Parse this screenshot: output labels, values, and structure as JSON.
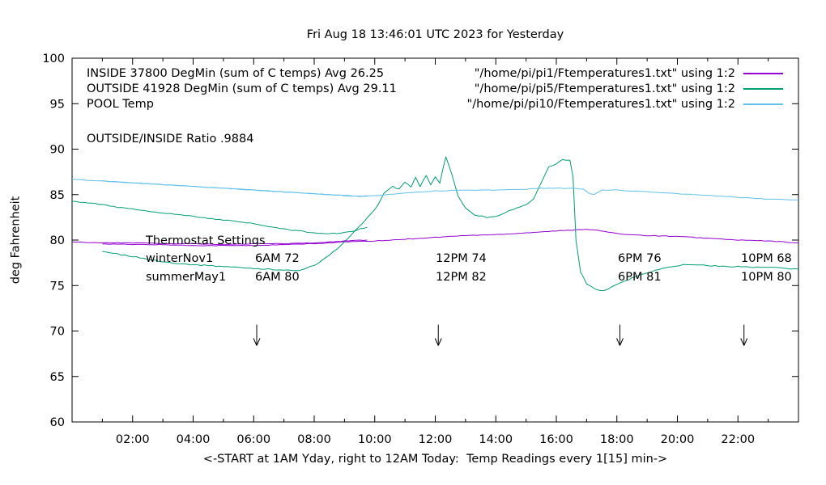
{
  "chart_data": {
    "type": "line",
    "title": "Fri Aug 18 13:46:01 UTC 2023 for Yesterday",
    "xlabel": "<-START at 1AM Yday, right to 12AM Today:  Temp Readings every 1[15] min->",
    "ylabel": "deg Fahrenheit",
    "xlim": [
      0,
      24
    ],
    "ylim": [
      60,
      100
    ],
    "grid": false,
    "legend_position": "top-inside",
    "x_major_ticks": {
      "values": [
        2,
        4,
        6,
        8,
        10,
        12,
        14,
        16,
        18,
        20,
        22
      ],
      "labels": [
        "02:00",
        "04:00",
        "06:00",
        "08:00",
        "10:00",
        "12:00",
        "14:00",
        "16:00",
        "18:00",
        "20:00",
        "22:00"
      ]
    },
    "x_minor_tick_step": 1,
    "y_ticks": [
      60,
      65,
      70,
      75,
      80,
      85,
      90,
      95,
      100
    ],
    "ratio_note": "OUTSIDE/INSIDE Ratio .9884",
    "series": [
      {
        "name": "INSIDE",
        "legend_label": "INSIDE 37800 DegMin (sum of C temps) Avg 26.25",
        "source": "\"/home/pi/pi1/Ftemperatures1.txt\" using 1:2",
        "color": "#9400d3",
        "in_legend": true,
        "x": [
          1,
          2,
          3,
          4,
          5,
          6,
          7,
          8,
          9,
          10,
          11,
          12,
          13,
          14,
          15,
          16,
          16.5,
          17,
          17.5,
          18,
          19,
          20,
          21,
          22,
          23,
          24
        ],
        "values": [
          79.6,
          79.5,
          79.5,
          79.4,
          79.4,
          79.4,
          79.5,
          79.6,
          79.8,
          79.9,
          80.1,
          80.3,
          80.5,
          80.6,
          80.8,
          81.0,
          81.1,
          81.2,
          81.0,
          80.7,
          80.5,
          80.4,
          80.2,
          80.0,
          79.9,
          79.7
        ]
      },
      {
        "name": "OUTSIDE",
        "legend_label": "OUTSIDE 41928 DegMin (sum of C temps) Avg 29.11",
        "source": "\"/home/pi/pi5/Ftemperatures1.txt\" using 1:2",
        "color": "#009e73",
        "in_legend": true,
        "x": [
          1,
          2,
          3,
          4,
          5,
          6,
          6.5,
          7,
          7.5,
          8,
          8.5,
          9,
          9.5,
          10,
          10.3,
          10.6,
          10.8,
          11,
          11.2,
          11.35,
          11.5,
          11.7,
          11.85,
          12,
          12.15,
          12.35,
          12.55,
          12.75,
          13,
          13.3,
          13.7,
          14,
          14.3,
          14.7,
          15,
          15.25,
          15.5,
          15.75,
          16,
          16.2,
          16.45,
          16.55,
          16.65,
          16.8,
          17,
          17.2,
          17.45,
          17.7,
          17.9,
          18.1,
          18.4,
          18.7,
          19,
          19.4,
          19.8,
          20.2,
          20.6,
          21,
          21.5,
          22,
          22.5,
          23,
          23.5,
          24
        ],
        "values": [
          78.7,
          78.2,
          77.6,
          77.3,
          77.1,
          76.9,
          76.8,
          76.7,
          76.6,
          77.2,
          78.3,
          79.8,
          81.5,
          83.3,
          85.1,
          85.9,
          85.6,
          86.4,
          85.8,
          86.9,
          85.9,
          87.1,
          86.1,
          86.9,
          86.3,
          89.2,
          87.2,
          84.9,
          83.5,
          82.8,
          82.5,
          82.6,
          83.0,
          83.6,
          83.9,
          84.5,
          86.3,
          88.0,
          88.4,
          88.8,
          88.8,
          87.0,
          80.0,
          76.5,
          75.2,
          74.8,
          74.4,
          74.6,
          75.0,
          75.3,
          75.7,
          76.1,
          76.4,
          76.8,
          77.1,
          77.3,
          77.3,
          77.2,
          77.1,
          77.1,
          77.0,
          77.0,
          76.9,
          76.8
        ]
      },
      {
        "name": "POOL",
        "legend_label": "POOL Temp",
        "source": "\"/home/pi/pi10/Ftemperatures1.txt\" using 1:2",
        "color": "#5fc0ea",
        "in_legend": true,
        "x": [
          1,
          2,
          3,
          4,
          5,
          6,
          7,
          8,
          9,
          9.5,
          10,
          10.5,
          11,
          11.5,
          12,
          13,
          14,
          15,
          15.5,
          16,
          16.5,
          16.9,
          17.1,
          17.25,
          17.5,
          18,
          18.5,
          19,
          19.5,
          20,
          21,
          22,
          23,
          24
        ],
        "values": [
          86.5,
          86.3,
          86.1,
          85.9,
          85.7,
          85.5,
          85.3,
          85.1,
          84.9,
          84.8,
          84.9,
          85.0,
          85.2,
          85.3,
          85.4,
          85.5,
          85.5,
          85.6,
          85.7,
          85.7,
          85.7,
          85.6,
          85.1,
          85.0,
          85.5,
          85.5,
          85.4,
          85.3,
          85.2,
          85.1,
          84.9,
          84.7,
          84.5,
          84.4
        ]
      },
      {
        "name": "INSIDE-today-partial",
        "color": "#9400d3",
        "in_legend": false,
        "x": [
          0,
          1,
          2,
          3,
          4,
          5,
          6,
          7,
          8,
          9,
          9.75
        ],
        "values": [
          79.8,
          79.7,
          79.7,
          79.6,
          79.6,
          79.5,
          79.6,
          79.6,
          79.7,
          79.9,
          80.0
        ]
      },
      {
        "name": "OUTSIDE-today-partial",
        "color": "#009e73",
        "in_legend": false,
        "x": [
          0,
          0.5,
          1,
          1.5,
          2,
          2.5,
          3,
          3.5,
          4,
          4.5,
          5,
          5.5,
          6,
          6.5,
          7,
          7.5,
          8,
          8.5,
          9,
          9.4,
          9.75
        ],
        "values": [
          84.3,
          84.1,
          83.9,
          83.6,
          83.4,
          83.2,
          83.0,
          82.8,
          82.6,
          82.4,
          82.2,
          82.0,
          81.8,
          81.5,
          81.2,
          81.0,
          80.8,
          80.7,
          80.8,
          81.1,
          81.4
        ]
      },
      {
        "name": "POOL-today-partial",
        "color": "#5fc0ea",
        "in_legend": false,
        "x": [
          0,
          1,
          2,
          3,
          4,
          5,
          6,
          7,
          8,
          9,
          9.75
        ],
        "values": [
          86.7,
          86.5,
          86.3,
          86.1,
          85.9,
          85.7,
          85.5,
          85.3,
          85.1,
          84.9,
          84.8
        ]
      }
    ],
    "annotations": {
      "heading": "Thermostat Settings",
      "rows": [
        {
          "name": "winterNov1",
          "settings": [
            "6AM 72",
            "12PM 74",
            "6PM 76",
            "10PM 68"
          ]
        },
        {
          "name": "summerMay1",
          "settings": [
            "6AM 80",
            "12PM 82",
            "6PM 81",
            "10PM 80"
          ]
        }
      ]
    },
    "arrows": {
      "x_hours": [
        6.1,
        12.1,
        18.1,
        22.2
      ],
      "y_from": 70.7,
      "y_to": 68.4
    }
  }
}
